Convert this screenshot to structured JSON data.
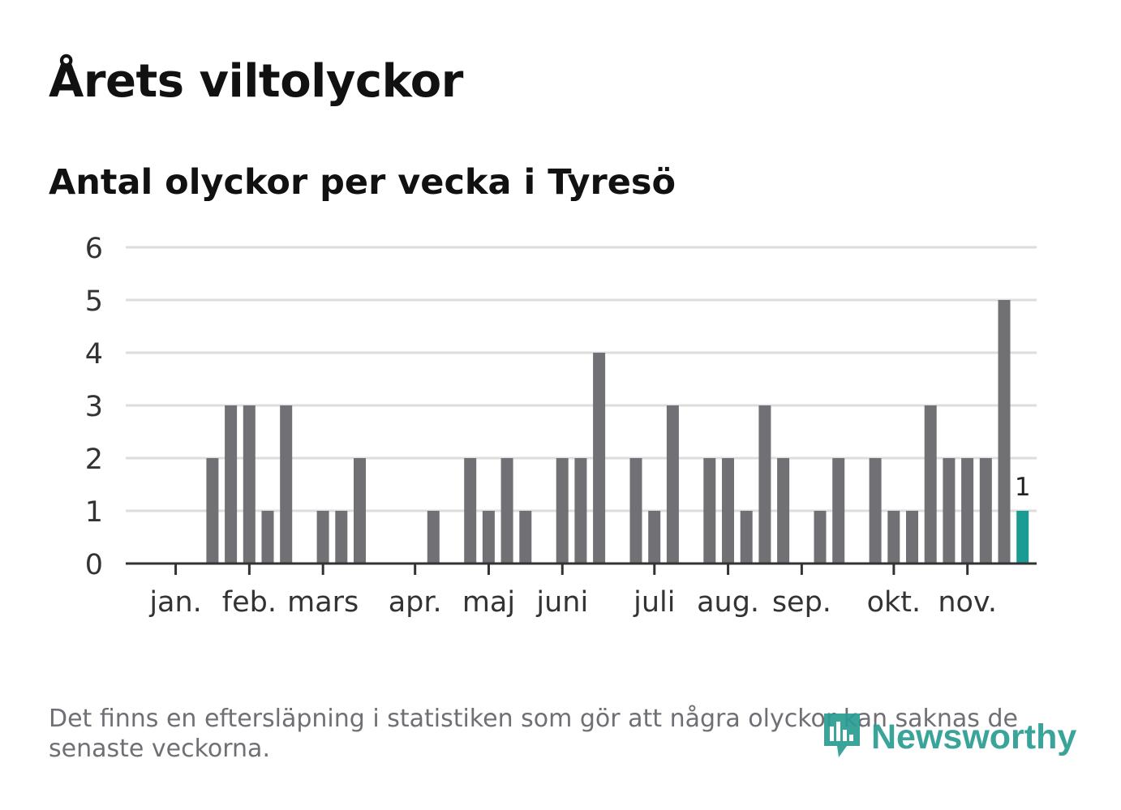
{
  "title": "Årets viltolyckor",
  "subtitle": "Antal olyckor per vecka i Tyresö",
  "footnote": "Det finns en eftersläpning i statistiken som gör att några olyckor kan saknas de senaste veckorna.",
  "brand": {
    "name": "Newsworthy",
    "logo": "newsworthy-logo-icon"
  },
  "colors": {
    "bar": "#717075",
    "highlight": "#1a9c93",
    "grid": "#dddddd",
    "axis": "#333333",
    "text": "#333333",
    "brand": "#2a9d92"
  },
  "chart_data": {
    "type": "bar",
    "title": "Antal olyckor per vecka i Tyresö",
    "xlabel": "",
    "ylabel": "",
    "ylim": [
      0,
      6
    ],
    "yticks": [
      0,
      1,
      2,
      3,
      4,
      5,
      6
    ],
    "grid": true,
    "legend": "none",
    "weeks": [
      1,
      2,
      3,
      4,
      5,
      6,
      7,
      8,
      9,
      10,
      11,
      12,
      13,
      14,
      15,
      16,
      17,
      18,
      19,
      20,
      21,
      22,
      23,
      24,
      25,
      26,
      27,
      28,
      29,
      30,
      31,
      32,
      33,
      34,
      35,
      36,
      37,
      38,
      39,
      40,
      41,
      42,
      43,
      44,
      45,
      46,
      47
    ],
    "values": [
      0,
      0,
      2,
      3,
      3,
      1,
      3,
      0,
      1,
      1,
      2,
      0,
      0,
      0,
      1,
      0,
      2,
      1,
      2,
      1,
      0,
      2,
      2,
      4,
      0,
      2,
      1,
      3,
      0,
      2,
      2,
      1,
      3,
      2,
      0,
      1,
      2,
      0,
      2,
      1,
      1,
      3,
      2,
      2,
      2,
      5,
      1
    ],
    "highlight_index": 46,
    "highlight_label": "1",
    "months": [
      {
        "label": "jan.",
        "week": 1.4
      },
      {
        "label": "feb.",
        "week": 5.4
      },
      {
        "label": "mars",
        "week": 9.4
      },
      {
        "label": "apr.",
        "week": 14.4
      },
      {
        "label": "maj",
        "week": 18.4
      },
      {
        "label": "juni",
        "week": 22.4
      },
      {
        "label": "juli",
        "week": 27.4
      },
      {
        "label": "aug.",
        "week": 31.4
      },
      {
        "label": "sep.",
        "week": 35.4
      },
      {
        "label": "okt.",
        "week": 40.4
      },
      {
        "label": "nov.",
        "week": 44.4
      }
    ]
  }
}
